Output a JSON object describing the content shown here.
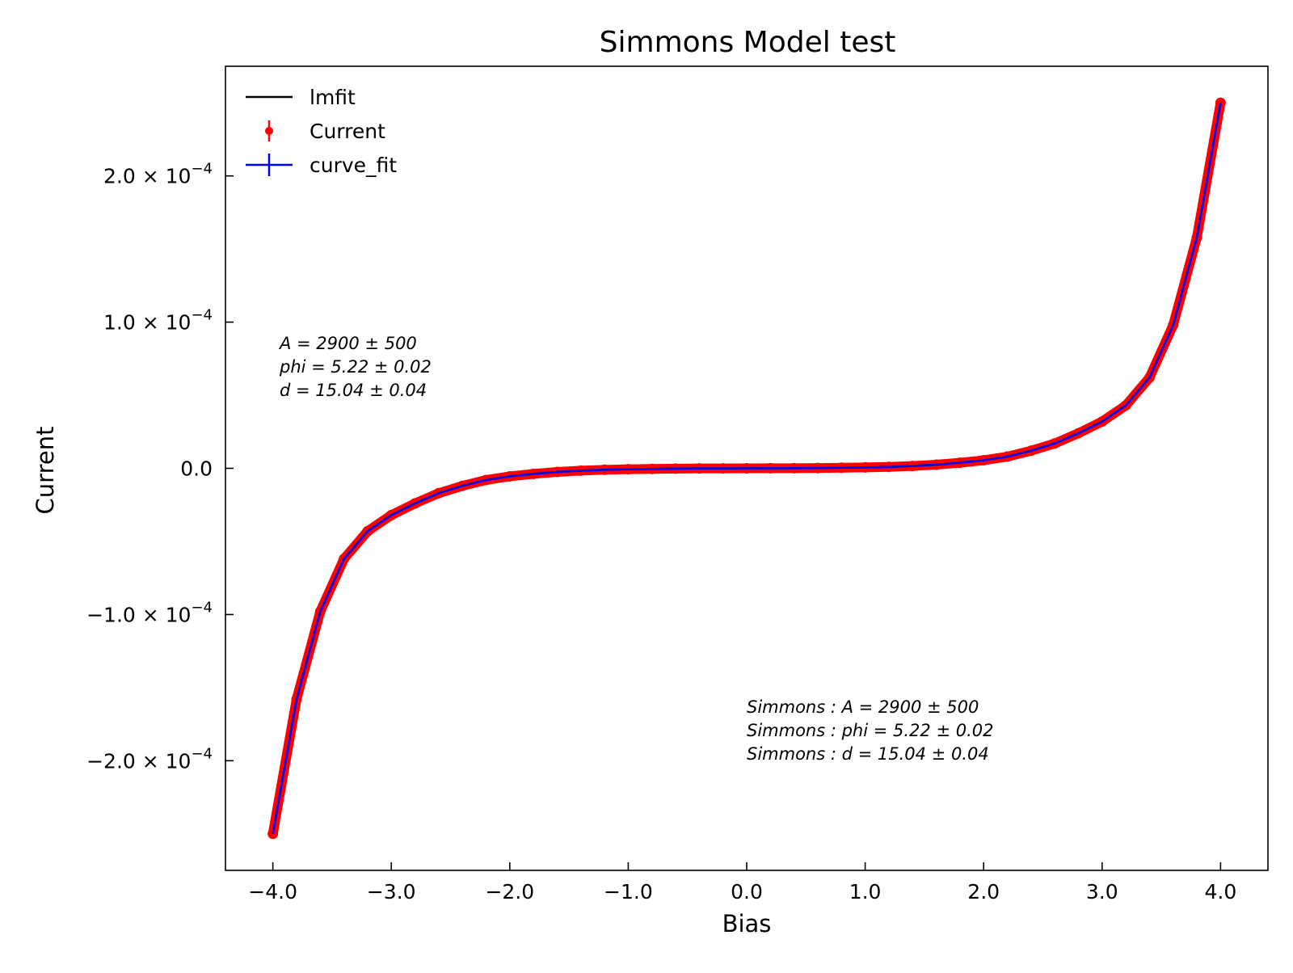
{
  "chart_data": {
    "type": "scatter",
    "title": "Simmons Model test",
    "xlabel": "Bias",
    "ylabel": "Current",
    "xlim": [
      -4.4,
      4.4
    ],
    "ylim": [
      -0.000275,
      0.000275
    ],
    "x_ticks": [
      -4,
      -3,
      -2,
      -1,
      0,
      1,
      2,
      3,
      4
    ],
    "x_tick_labels": [
      "−4.0",
      "−3.0",
      "−2.0",
      "−1.0",
      "0.0",
      "1.0",
      "2.0",
      "3.0",
      "4.0"
    ],
    "y_ticks": [
      -0.0002,
      -0.0001,
      0,
      0.0001,
      0.0002
    ],
    "y_tick_labels": [
      {
        "mantissa": "−2.0 × 10",
        "exp": "−4"
      },
      {
        "mantissa": "−1.0 × 10",
        "exp": "−4"
      },
      {
        "mantissa": "0.0",
        "exp": ""
      },
      {
        "mantissa": "1.0 × 10",
        "exp": "−4"
      },
      {
        "mantissa": "2.0 × 10",
        "exp": "−4"
      }
    ],
    "grid": false,
    "legend_position": "top-left",
    "series": [
      {
        "name": "Current",
        "kind": "errorbar-points",
        "color": "#ff0000",
        "x": [
          -4.0,
          -3.8,
          -3.6,
          -3.4,
          -3.2,
          -3.0,
          -2.8,
          -2.6,
          -2.4,
          -2.2,
          -2.0,
          -1.8,
          -1.6,
          -1.4,
          -1.2,
          -1.0,
          -0.8,
          -0.6,
          -0.4,
          -0.2,
          0.0,
          0.2,
          0.4,
          0.6,
          0.8,
          1.0,
          1.2,
          1.4,
          1.6,
          1.8,
          2.0,
          2.2,
          2.4,
          2.6,
          2.8,
          3.0,
          3.2,
          3.4,
          3.6,
          3.8,
          4.0
        ],
        "y": [
          -0.00025,
          -0.000158,
          -9.8e-05,
          -6.2e-05,
          -4.3e-05,
          -3.2e-05,
          -2.4e-05,
          -1.7e-05,
          -1.2e-05,
          -8e-06,
          -5.5e-06,
          -3.8e-06,
          -2.5e-06,
          -1.6e-06,
          -1e-06,
          -6e-07,
          -4e-07,
          -2e-07,
          -1e-07,
          -5e-08,
          0.0,
          5e-08,
          1e-07,
          2e-07,
          4e-07,
          6e-07,
          1e-06,
          1.6e-06,
          2.5e-06,
          3.8e-06,
          5.5e-06,
          8e-06,
          1.2e-05,
          1.7e-05,
          2.4e-05,
          3.2e-05,
          4.3e-05,
          6.2e-05,
          9.8e-05,
          0.000158,
          0.00025
        ]
      },
      {
        "name": "lmfit",
        "kind": "line",
        "color": "#000000"
      },
      {
        "name": "curve_fit",
        "kind": "line-errorbar",
        "color": "#0000ff"
      }
    ],
    "legend": [
      {
        "name": "lmfit",
        "marker": "line",
        "color": "#000000"
      },
      {
        "name": "Current",
        "marker": "errorbar-dot",
        "color": "#ff0000"
      },
      {
        "name": "curve_fit",
        "marker": "errorbar-line",
        "color": "#0000ff"
      }
    ],
    "annotations": {
      "left": [
        "A = 2900 ± 500",
        "phi = 5.22 ± 0.02",
        "d = 15.04 ± 0.04"
      ],
      "right": [
        "Simmons : A = 2900 ± 500",
        "Simmons : phi = 5.22 ± 0.02",
        "Simmons : d = 15.04 ± 0.04"
      ]
    }
  }
}
